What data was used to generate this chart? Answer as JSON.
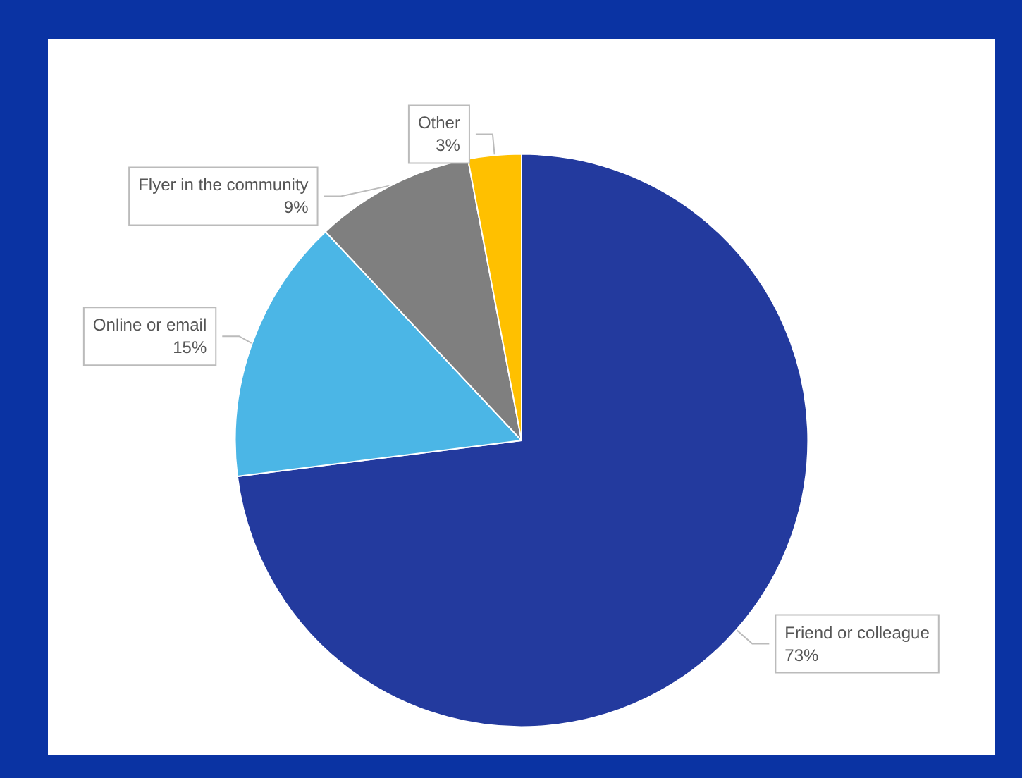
{
  "chart_data": {
    "type": "pie",
    "categories": [
      "Friend or colleague",
      "Online or email",
      "Flyer in the community",
      "Other"
    ],
    "values": [
      73,
      15,
      9,
      3
    ],
    "value_labels": [
      "73%",
      "15%",
      "9%",
      "3%"
    ],
    "colors": [
      "#233a9e",
      "#4bb6e6",
      "#7f7f7f",
      "#ffc000"
    ],
    "legend": false
  }
}
